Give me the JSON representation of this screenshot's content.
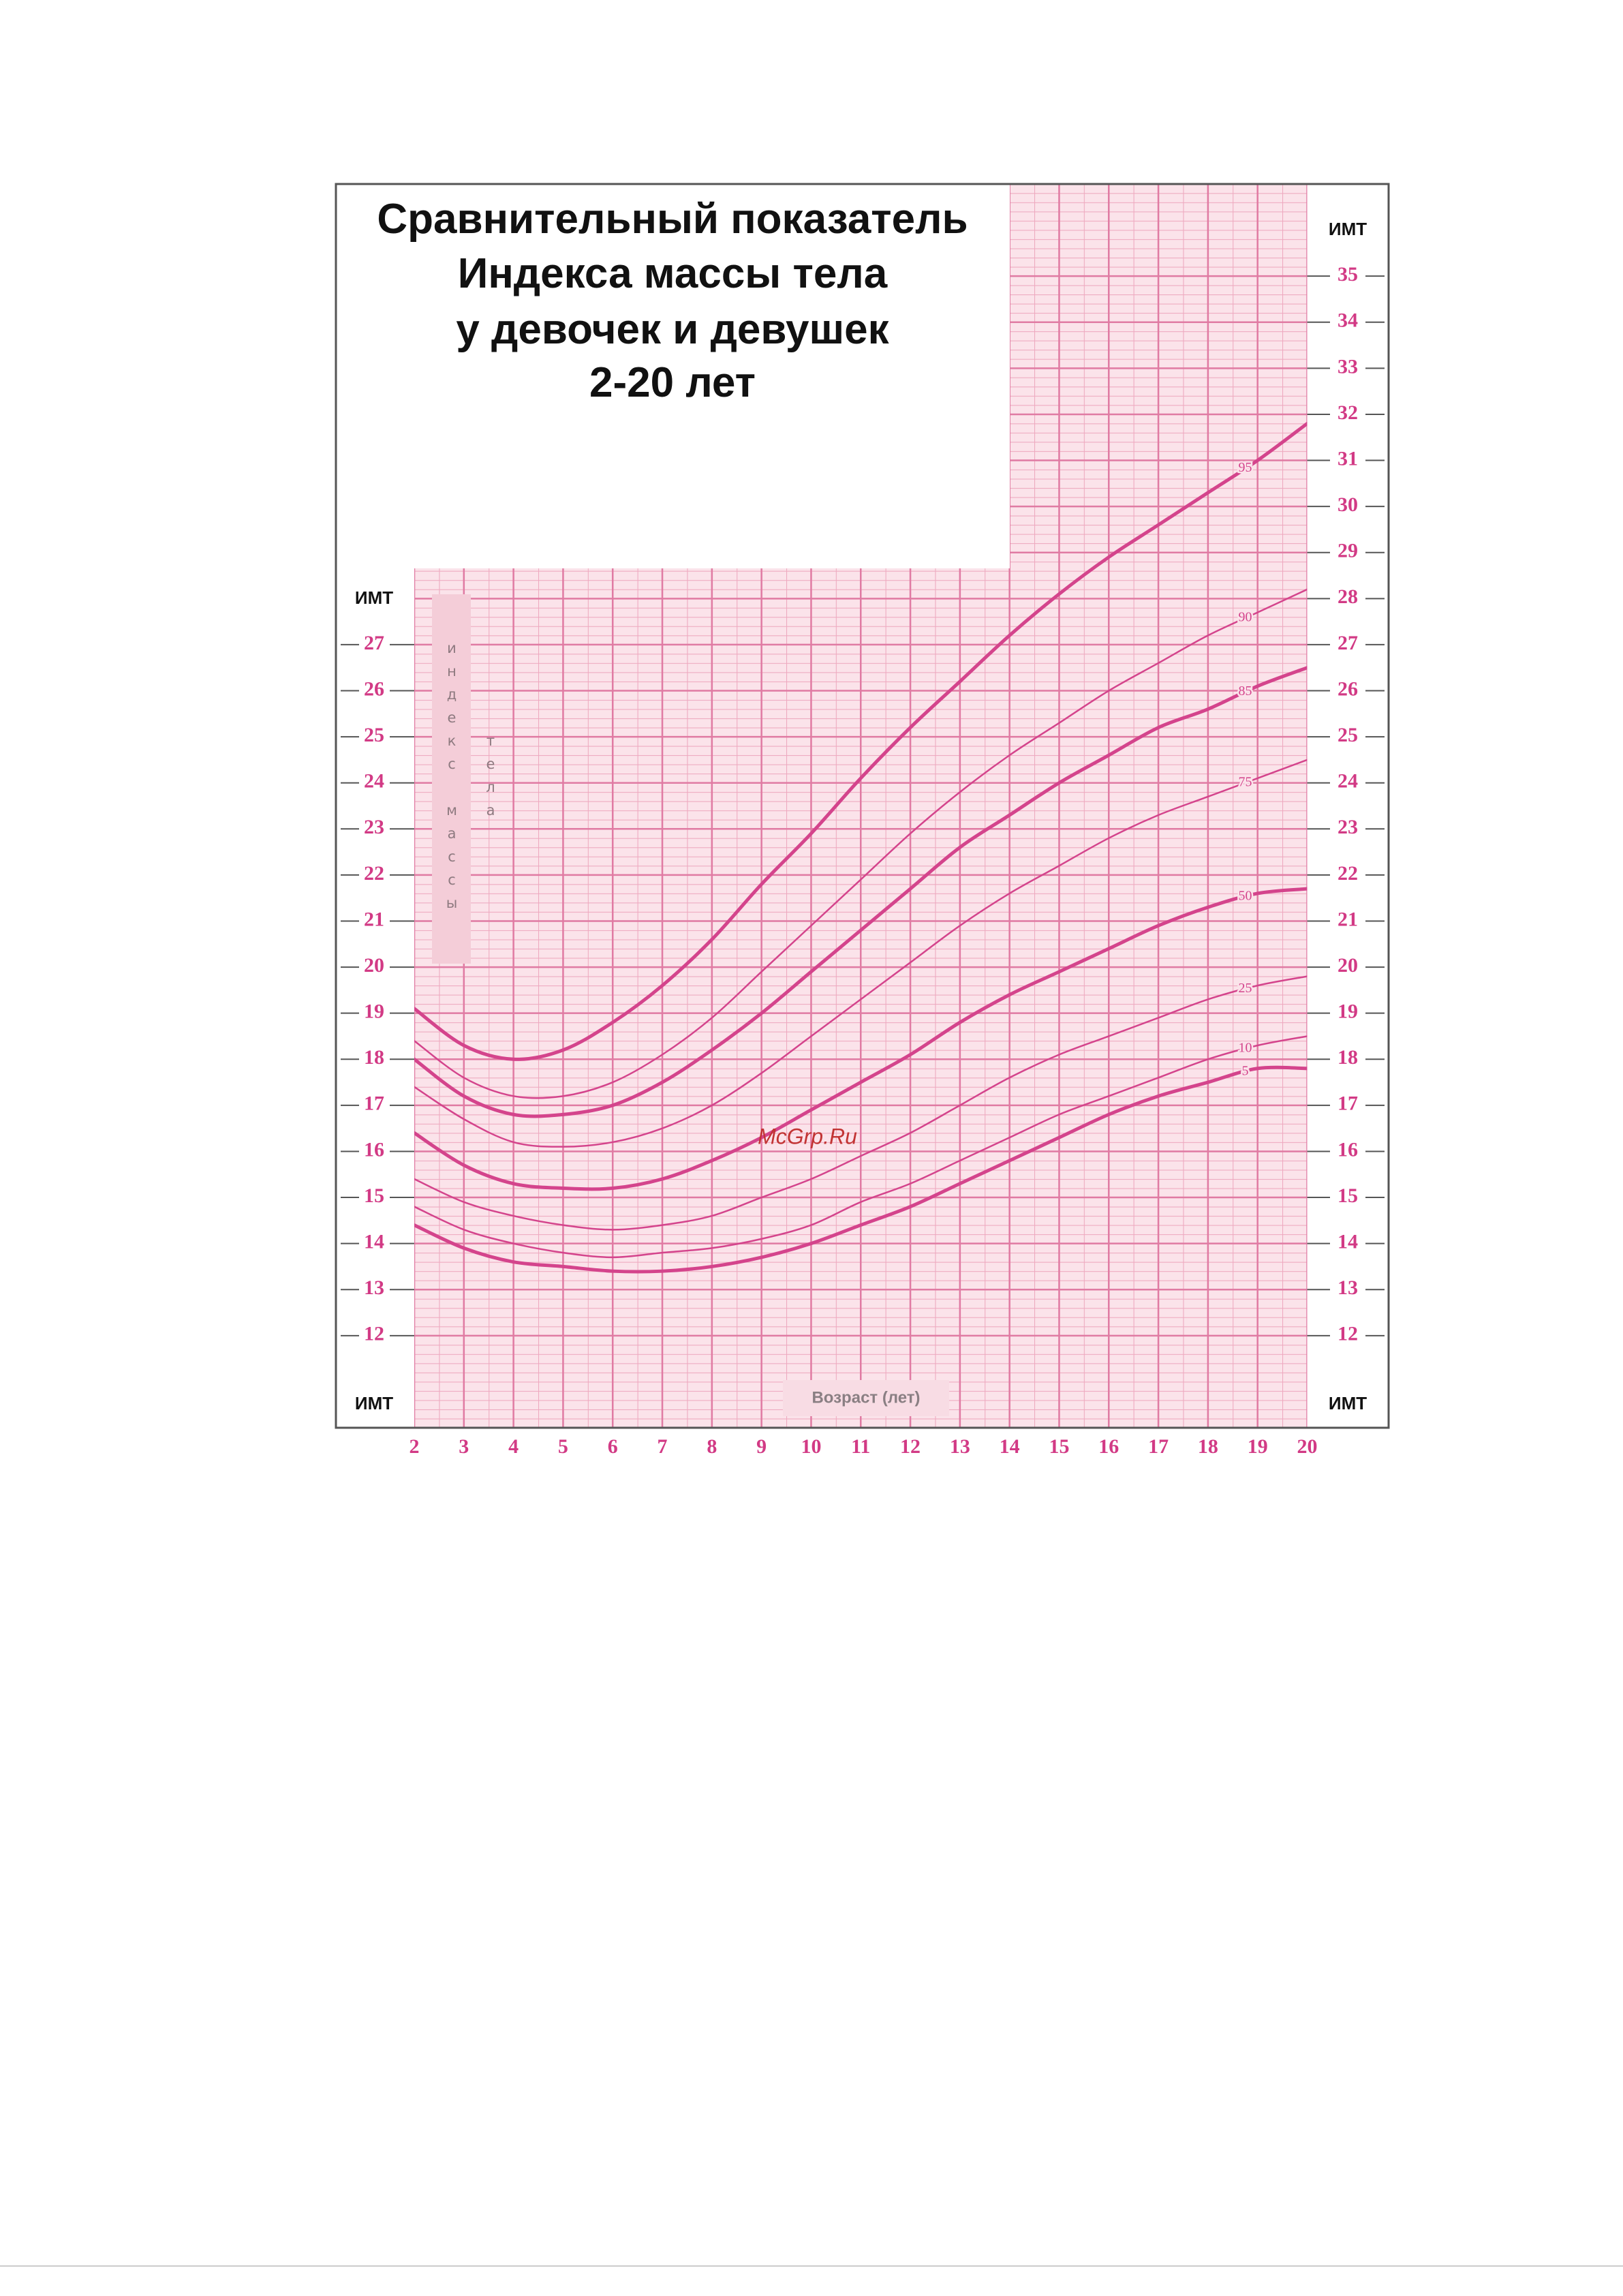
{
  "chart_data": {
    "type": "line",
    "title": [
      "Сравнительный показатель",
      "Индекса массы тела",
      "у девочек и девушек",
      "2-20 лет"
    ],
    "xlabel": "Возраст (лет)",
    "ylabel": "ИМТ",
    "y2label": "ИМТ",
    "y_title": "индекс массы тела",
    "watermark": "McGrp.Ru",
    "x": [
      2,
      3,
      4,
      5,
      6,
      7,
      8,
      9,
      10,
      11,
      12,
      13,
      14,
      15,
      16,
      17,
      18,
      19,
      20
    ],
    "xlim": [
      2,
      20
    ],
    "xticks": [
      2,
      3,
      4,
      5,
      6,
      7,
      8,
      9,
      10,
      11,
      12,
      13,
      14,
      15,
      16,
      17,
      18,
      19,
      20
    ],
    "ylim": [
      10,
      37
    ],
    "yticks": [
      12,
      13,
      14,
      15,
      16,
      17,
      18,
      19,
      20,
      21,
      22,
      23,
      24,
      25,
      26,
      27
    ],
    "y2lim": [
      10,
      37
    ],
    "y2ticks": [
      12,
      13,
      14,
      15,
      16,
      17,
      18,
      19,
      20,
      21,
      22,
      23,
      24,
      25,
      26,
      27,
      28,
      29,
      30,
      31,
      32,
      33,
      34,
      35
    ],
    "grid": true,
    "series": [
      {
        "name": "95",
        "color": "#d4448c",
        "bold": true,
        "values": [
          19.1,
          18.3,
          18.0,
          18.2,
          18.8,
          19.6,
          20.6,
          21.8,
          22.9,
          24.1,
          25.2,
          26.2,
          27.2,
          28.1,
          28.9,
          29.6,
          30.3,
          31.0,
          31.8
        ]
      },
      {
        "name": "90",
        "color": "#d4448c",
        "bold": false,
        "values": [
          18.4,
          17.6,
          17.2,
          17.2,
          17.5,
          18.1,
          18.9,
          19.9,
          20.9,
          21.9,
          22.9,
          23.8,
          24.6,
          25.3,
          26.0,
          26.6,
          27.2,
          27.7,
          28.2
        ]
      },
      {
        "name": "85",
        "color": "#d4448c",
        "bold": true,
        "values": [
          18.0,
          17.2,
          16.8,
          16.8,
          17.0,
          17.5,
          18.2,
          19.0,
          19.9,
          20.8,
          21.7,
          22.6,
          23.3,
          24.0,
          24.6,
          25.2,
          25.6,
          26.1,
          26.5
        ]
      },
      {
        "name": "75",
        "color": "#d4448c",
        "bold": false,
        "values": [
          17.4,
          16.7,
          16.2,
          16.1,
          16.2,
          16.5,
          17.0,
          17.7,
          18.5,
          19.3,
          20.1,
          20.9,
          21.6,
          22.2,
          22.8,
          23.3,
          23.7,
          24.1,
          24.5
        ]
      },
      {
        "name": "50",
        "color": "#d4448c",
        "bold": true,
        "values": [
          16.4,
          15.7,
          15.3,
          15.2,
          15.2,
          15.4,
          15.8,
          16.3,
          16.9,
          17.5,
          18.1,
          18.8,
          19.4,
          19.9,
          20.4,
          20.9,
          21.3,
          21.6,
          21.7
        ]
      },
      {
        "name": "25",
        "color": "#d4448c",
        "bold": false,
        "values": [
          15.4,
          14.9,
          14.6,
          14.4,
          14.3,
          14.4,
          14.6,
          15.0,
          15.4,
          15.9,
          16.4,
          17.0,
          17.6,
          18.1,
          18.5,
          18.9,
          19.3,
          19.6,
          19.8
        ]
      },
      {
        "name": "10",
        "color": "#d4448c",
        "bold": false,
        "values": [
          14.8,
          14.3,
          14.0,
          13.8,
          13.7,
          13.8,
          13.9,
          14.1,
          14.4,
          14.9,
          15.3,
          15.8,
          16.3,
          16.8,
          17.2,
          17.6,
          18.0,
          18.3,
          18.5
        ]
      },
      {
        "name": "5",
        "color": "#d4448c",
        "bold": true,
        "values": [
          14.4,
          13.9,
          13.6,
          13.5,
          13.4,
          13.4,
          13.5,
          13.7,
          14.0,
          14.4,
          14.8,
          15.3,
          15.8,
          16.3,
          16.8,
          17.2,
          17.5,
          17.8,
          17.8
        ]
      }
    ]
  }
}
